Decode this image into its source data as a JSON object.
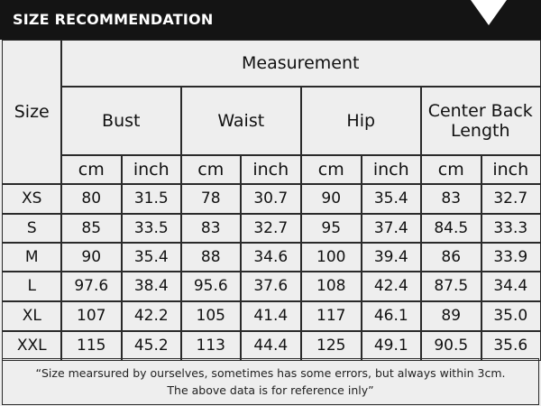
{
  "header": {
    "title": "SIZE RECOMMENDATION"
  },
  "table": {
    "size_label": "Size",
    "measurement_label": "Measurement",
    "groups": [
      "Bust",
      "Waist",
      "Hip",
      "Center Back Length"
    ],
    "units": [
      "cm",
      "inch",
      "cm",
      "inch",
      "cm",
      "inch",
      "cm",
      "inch"
    ],
    "rows": [
      {
        "size": "XS",
        "cells": [
          "80",
          "31.5",
          "78",
          "30.7",
          "90",
          "35.4",
          "83",
          "32.7"
        ]
      },
      {
        "size": "S",
        "cells": [
          "85",
          "33.5",
          "83",
          "32.7",
          "95",
          "37.4",
          "84.5",
          "33.3"
        ]
      },
      {
        "size": "M",
        "cells": [
          "90",
          "35.4",
          "88",
          "34.6",
          "100",
          "39.4",
          "86",
          "33.9"
        ]
      },
      {
        "size": "L",
        "cells": [
          "97.6",
          "38.4",
          "95.6",
          "37.6",
          "108",
          "42.4",
          "87.5",
          "34.4"
        ]
      },
      {
        "size": "XL",
        "cells": [
          "107",
          "42.2",
          "105",
          "41.4",
          "117",
          "46.1",
          "89",
          "35.0"
        ]
      },
      {
        "size": "XXL",
        "cells": [
          "115",
          "45.2",
          "113",
          "44.4",
          "125",
          "49.1",
          "90.5",
          "35.6"
        ]
      }
    ]
  },
  "footer": {
    "lines": [
      "“Size mearsured by ourselves, sometimes has some errors, but always within 3cm.",
      "The above data is for reference inly”"
    ]
  }
}
